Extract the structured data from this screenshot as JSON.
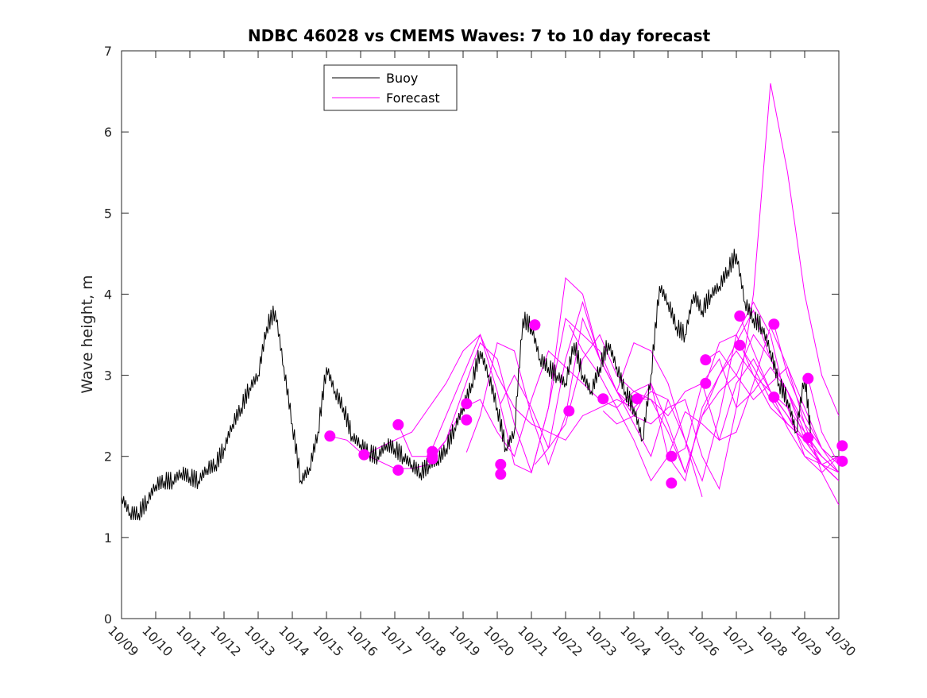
{
  "chart_data": {
    "type": "line",
    "title": "NDBC 46028 vs CMEMS Waves: 7 to 10 day forecast",
    "xlabel": "",
    "ylabel": "Wave height, m",
    "xlim": [
      0,
      21
    ],
    "ylim": [
      0,
      7
    ],
    "x_tick_labels": [
      "10/09",
      "10/10",
      "10/11",
      "10/12",
      "10/13",
      "10/14",
      "10/15",
      "10/16",
      "10/17",
      "10/18",
      "10/19",
      "10/20",
      "10/21",
      "10/22",
      "10/23",
      "10/24",
      "10/25",
      "10/26",
      "10/27",
      "10/28",
      "10/29",
      "10/30"
    ],
    "y_tick_labels": [
      "0",
      "1",
      "2",
      "3",
      "4",
      "5",
      "6",
      "7"
    ],
    "legend": {
      "location": "top-left",
      "entries": [
        {
          "name": "Buoy",
          "color": "#000000"
        },
        {
          "name": "Forecast",
          "color": "#ff00ff"
        }
      ]
    },
    "series": [
      {
        "name": "Buoy",
        "color": "#000000",
        "x": [
          0,
          0.25,
          0.5,
          0.75,
          1,
          1.25,
          1.5,
          1.75,
          2,
          2.25,
          2.5,
          2.75,
          3,
          3.25,
          3.5,
          3.75,
          4,
          4.25,
          4.5,
          4.75,
          5,
          5.25,
          5.5,
          5.75,
          6,
          6.25,
          6.5,
          6.75,
          7,
          7.25,
          7.5,
          7.75,
          8,
          8.25,
          8.5,
          8.75,
          9,
          9.25,
          9.5,
          9.75,
          10,
          10.25,
          10.5,
          10.75,
          11,
          11.25,
          11.5,
          11.75,
          12,
          12.25,
          12.5,
          12.75,
          13,
          13.25,
          13.5,
          13.75,
          14,
          14.25,
          14.5,
          14.75,
          15,
          15.25,
          15.5,
          15.75,
          16,
          16.25,
          16.5,
          16.75,
          17,
          17.25,
          17.5,
          17.75,
          18,
          18.25,
          18.5,
          18.75,
          19,
          19.25,
          19.5,
          19.75,
          20,
          20.2
        ],
        "y": [
          1.5,
          1.3,
          1.3,
          1.45,
          1.65,
          1.7,
          1.7,
          1.8,
          1.75,
          1.7,
          1.85,
          1.9,
          2.1,
          2.4,
          2.6,
          2.85,
          3.0,
          3.6,
          3.8,
          3.1,
          2.4,
          1.7,
          1.85,
          2.3,
          3.1,
          2.8,
          2.6,
          2.25,
          2.15,
          2.05,
          2.0,
          2.15,
          2.1,
          2.0,
          1.9,
          1.8,
          1.9,
          1.95,
          2.1,
          2.35,
          2.6,
          2.9,
          3.3,
          3.0,
          2.6,
          2.1,
          2.3,
          3.7,
          3.6,
          3.2,
          3.1,
          3.0,
          2.9,
          3.4,
          3.0,
          2.8,
          3.1,
          3.4,
          3.1,
          2.8,
          2.6,
          2.2,
          3.0,
          4.1,
          3.9,
          3.6,
          3.5,
          4.0,
          3.8,
          4.0,
          4.1,
          4.3,
          4.5,
          3.9,
          3.7,
          3.6,
          3.3,
          2.9,
          2.7,
          2.3,
          3.0,
          2.2
        ]
      },
      {
        "name": "Forecast",
        "color": "#ff00ff",
        "x": [
          6.1,
          6.6,
          7.0,
          7.5,
          8.0,
          8.5,
          9.0,
          9.5,
          10.0,
          10.5,
          11.0,
          11.5,
          12.0,
          12.5,
          13.0,
          13.5,
          14.0,
          14.5,
          15.0,
          15.5,
          16.0,
          16.5,
          17.0,
          17.5,
          18.0,
          18.5,
          19.0,
          19.5,
          20.0,
          20.5,
          21.0
        ],
        "y": [
          2.25,
          2.2,
          2.05,
          1.95,
          1.85,
          1.85,
          1.9,
          2.2,
          2.6,
          2.7,
          2.3,
          2.0,
          2.7,
          3.3,
          3.1,
          2.9,
          2.7,
          2.6,
          2.2,
          1.7,
          2.0,
          2.55,
          2.4,
          2.2,
          2.9,
          3.2,
          2.8,
          2.35,
          2.0,
          1.8,
          2.0
        ]
      },
      {
        "name": "Forecast",
        "color": "#ff00ff",
        "x": [
          7.1,
          7.5,
          8.0,
          8.5,
          9.0,
          9.5,
          10.0,
          10.5,
          11.0,
          11.5,
          12.0,
          12.5,
          13.0,
          13.5,
          14.0,
          14.5,
          15.0
        ],
        "y": [
          2.0,
          2.1,
          2.2,
          2.3,
          2.6,
          2.9,
          3.3,
          3.5,
          3.0,
          2.6,
          2.4,
          2.3,
          2.2,
          2.5,
          2.6,
          2.7,
          2.6
        ]
      },
      {
        "name": "Forecast",
        "color": "#ff00ff",
        "x": [
          8.1,
          8.5,
          9.0,
          9.5,
          10.0,
          10.5,
          11.0,
          11.5,
          12.0,
          12.5,
          13.0,
          13.5,
          14.0,
          14.5,
          15.0,
          15.5,
          16.0
        ],
        "y": [
          2.4,
          2.0,
          2.0,
          2.5,
          3.0,
          3.5,
          2.8,
          1.9,
          1.8,
          2.6,
          3.7,
          3.5,
          3.3,
          2.8,
          2.4,
          2.0,
          2.7
        ]
      },
      {
        "name": "Forecast",
        "color": "#ff00ff",
        "x": [
          9.1,
          9.5,
          10.0,
          10.5,
          11.0,
          11.5,
          12.0,
          12.5,
          13.0,
          13.5,
          14.0,
          14.5,
          15.0,
          15.5,
          16.0,
          16.5,
          17.0
        ],
        "y": [
          2.0,
          2.2,
          2.8,
          3.4,
          3.2,
          2.4,
          1.8,
          2.6,
          4.2,
          4.0,
          3.2,
          2.8,
          3.4,
          3.3,
          2.9,
          2.2,
          1.5
        ]
      },
      {
        "name": "Forecast",
        "color": "#ff00ff",
        "x": [
          10.1,
          10.5,
          11.0,
          11.5,
          12.0,
          12.5,
          13.0,
          13.5,
          14.0,
          14.5,
          15.0,
          15.5,
          16.0,
          16.5,
          17.0,
          17.5,
          18.0,
          18.5,
          19.0,
          19.5,
          20.0,
          20.5,
          21.0
        ],
        "y": [
          2.05,
          2.5,
          3.4,
          3.3,
          2.5,
          1.9,
          2.5,
          3.7,
          3.2,
          2.8,
          2.5,
          2.4,
          2.6,
          2.7,
          2.0,
          1.6,
          2.6,
          4.0,
          6.6,
          5.5,
          4.0,
          3.0,
          2.5
        ]
      },
      {
        "name": "Forecast",
        "color": "#ff00ff",
        "x": [
          11.1,
          11.5,
          12.0,
          12.5,
          13.0,
          13.5,
          14.0,
          14.5,
          15.0,
          15.5,
          16.0,
          16.5,
          17.0,
          17.5,
          18.0,
          18.5,
          19.0,
          19.5,
          20.0,
          20.5,
          21.0
        ],
        "y": [
          2.65,
          3.0,
          2.6,
          2.1,
          2.4,
          3.2,
          3.5,
          3.0,
          2.8,
          2.7,
          2.5,
          2.8,
          2.9,
          2.2,
          2.3,
          2.9,
          3.6,
          3.1,
          2.4,
          1.8,
          1.4
        ]
      },
      {
        "name": "Forecast",
        "color": "#ff00ff",
        "x": [
          12.1,
          12.5,
          13.0,
          13.5,
          14.0,
          14.5,
          15.0,
          15.5,
          16.0,
          16.5,
          17.0,
          17.5,
          18.0,
          18.5,
          19.0,
          19.5,
          20.0,
          20.5,
          21.0
        ],
        "y": [
          1.9,
          2.1,
          3.2,
          3.9,
          3.2,
          2.8,
          2.6,
          2.8,
          2.7,
          2.2,
          1.7,
          2.5,
          3.5,
          3.9,
          3.5,
          2.6,
          2.0,
          1.9,
          1.7
        ]
      },
      {
        "name": "Forecast",
        "color": "#ff00ff",
        "x": [
          13.1,
          13.5,
          14.0,
          14.5,
          15.0,
          15.5,
          16.0,
          16.5,
          17.0,
          17.5,
          18.0,
          18.5,
          19.0,
          19.5,
          20.0,
          20.5,
          21.0
        ],
        "y": [
          3.62,
          3.3,
          3.0,
          2.6,
          2.8,
          2.9,
          2.4,
          1.8,
          2.5,
          3.0,
          3.4,
          3.8,
          3.2,
          2.8,
          2.4,
          2.1,
          1.8
        ]
      },
      {
        "name": "Forecast",
        "color": "#ff00ff",
        "x": [
          14.1,
          14.5,
          15.0,
          15.5,
          16.0,
          16.5,
          17.0,
          17.5,
          18.0,
          18.5,
          19.0,
          19.5,
          20.0,
          20.5,
          21.0
        ],
        "y": [
          2.56,
          2.4,
          2.5,
          2.9,
          2.0,
          1.7,
          2.6,
          3.0,
          3.3,
          3.0,
          2.8,
          2.6,
          2.3,
          2.0,
          1.8
        ]
      },
      {
        "name": "Forecast",
        "color": "#ff00ff",
        "x": [
          15.1,
          15.5,
          16.0,
          16.5,
          17.0,
          17.5,
          18.0,
          18.5,
          19.0,
          19.5,
          20.0,
          20.5,
          21.0
        ],
        "y": [
          2.71,
          2.7,
          2.3,
          1.8,
          2.5,
          2.8,
          3.0,
          3.5,
          3.2,
          2.8,
          2.2,
          1.9,
          1.7
        ]
      },
      {
        "name": "Forecast",
        "color": "#ff00ff",
        "x": [
          16.1,
          16.5,
          17.0,
          17.5,
          18.0,
          18.5,
          19.0,
          19.5,
          20.0,
          20.5,
          21.0
        ],
        "y": [
          2.0,
          2.1,
          2.9,
          3.2,
          2.6,
          2.8,
          3.1,
          2.8,
          2.3,
          1.9,
          1.7
        ]
      },
      {
        "name": "Forecast",
        "color": "#ff00ff",
        "x": [
          17.1,
          17.5,
          18.0,
          18.5,
          19.0,
          19.5,
          20.0,
          20.5,
          21.0
        ],
        "y": [
          3.19,
          3.3,
          3.0,
          2.7,
          2.9,
          3.1,
          2.6,
          2.1,
          1.9
        ]
      },
      {
        "name": "Forecast",
        "color": "#ff00ff",
        "x": [
          17.1,
          17.5,
          18.0,
          18.5,
          19.0,
          19.5,
          20.0,
          20.5,
          21.0
        ],
        "y": [
          2.9,
          3.4,
          3.5,
          3.0,
          2.6,
          2.4,
          2.2,
          1.9,
          1.8
        ]
      },
      {
        "name": "Forecast",
        "color": "#ff00ff",
        "x": [
          18.1,
          18.5,
          19.0,
          19.5,
          20.0,
          20.5,
          21.0
        ],
        "y": [
          3.73,
          3.3,
          2.8,
          2.5,
          2.1,
          1.9,
          2.0
        ]
      },
      {
        "name": "Forecast",
        "color": "#ff00ff",
        "x": [
          18.1,
          18.5,
          19.0,
          19.5,
          20.0,
          20.5,
          21.0
        ],
        "y": [
          3.37,
          3.1,
          2.7,
          2.4,
          2.2,
          2.0,
          1.8
        ]
      },
      {
        "name": "Forecast",
        "color": "#ff00ff",
        "x": [
          19.1,
          19.5,
          20.0,
          20.5,
          21.0
        ],
        "y": [
          3.63,
          3.0,
          2.5,
          2.1,
          1.9
        ]
      },
      {
        "name": "Forecast",
        "color": "#ff00ff",
        "x": [
          19.1,
          19.5,
          20.0,
          20.5,
          21.0
        ],
        "y": [
          2.73,
          2.5,
          2.2,
          1.9,
          1.7
        ]
      },
      {
        "name": "Forecast",
        "color": "#ff00ff",
        "x": [
          20.1,
          20.5,
          21.0
        ],
        "y": [
          2.96,
          2.3,
          1.9
        ]
      },
      {
        "name": "Forecast",
        "color": "#ff00ff",
        "x": [
          20.1,
          20.5,
          21.0
        ],
        "y": [
          2.23,
          2.0,
          1.8
        ]
      }
    ],
    "forecast_points": {
      "name": "Forecast",
      "color": "#ff00ff",
      "x": [
        6.1,
        7.1,
        8.1,
        8.1,
        9.1,
        9.1,
        9.1,
        10.1,
        10.1,
        11.1,
        11.1,
        12.1,
        12.1,
        13.1,
        14.1,
        15.1,
        16.1,
        16.1,
        17.1,
        17.1,
        18.1,
        18.1,
        19.1,
        19.1,
        20.1,
        20.1,
        21.1,
        21.1
      ],
      "y": [
        2.25,
        2.02,
        1.83,
        2.39,
        2.06,
        2.0,
        1.97,
        2.65,
        2.45,
        1.9,
        1.78,
        3.62,
        3.62,
        2.56,
        2.71,
        2.71,
        2.0,
        1.67,
        3.19,
        2.9,
        3.73,
        3.37,
        3.63,
        2.73,
        2.96,
        2.23,
        2.13,
        1.94
      ]
    }
  }
}
